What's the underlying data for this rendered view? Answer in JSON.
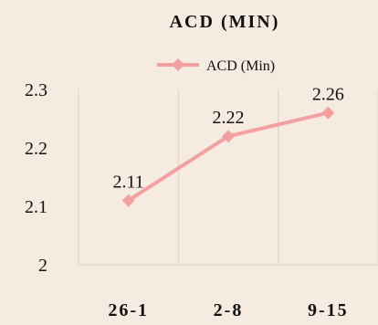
{
  "chart_data": {
    "type": "line",
    "title": "ACD (MIN)",
    "categories": [
      "26-1",
      "2-8",
      "9-15"
    ],
    "series": [
      {
        "name": "ACD (Min)",
        "values": [
          2.11,
          2.22,
          2.26
        ],
        "color": "#f4a0a0"
      }
    ],
    "ylim": [
      2,
      2.3
    ],
    "yticks": [
      "2",
      "2.1",
      "2.2",
      "2.3"
    ],
    "data_labels": [
      "2.11",
      "2.22",
      "2.26"
    ],
    "xlabel": "",
    "ylabel": "",
    "legend_position": "top",
    "grid": "vertical",
    "background": "#f5ebe1",
    "gridline_color": "#d9d3cc",
    "marker": "diamond"
  }
}
